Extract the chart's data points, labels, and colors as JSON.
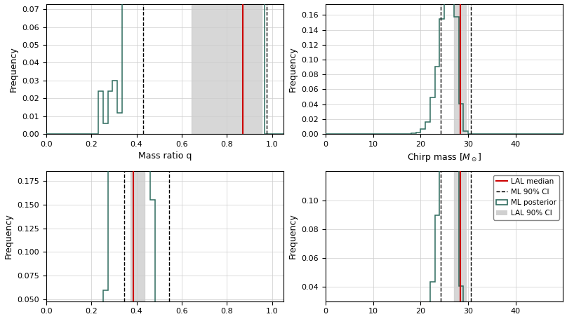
{
  "plot_color": "#2d6b5e",
  "red_color": "#cc0000",
  "lal_shade_color": "#d0d0d0",
  "q_xlim": [
    0.0,
    1.05
  ],
  "q_ylim": [
    0.0,
    0.073
  ],
  "q_yticks": [
    0.0,
    0.01,
    0.02,
    0.03,
    0.04,
    0.05,
    0.06,
    0.07
  ],
  "q_xticks": [
    0.0,
    0.2,
    0.4,
    0.6,
    0.8,
    1.0
  ],
  "q_xlabel": "Mass ratio q",
  "q_ylabel": "Frequency",
  "q_ml_ci_low": 0.43,
  "q_ml_ci_high": 0.975,
  "q_lal_ci_low": 0.645,
  "q_lal_ci_high": 0.955,
  "q_lal_median": 0.87,
  "mchirp_xlim": [
    0,
    50
  ],
  "mchirp_ylim": [
    0.0,
    0.175
  ],
  "mchirp_yticks": [
    0.0,
    0.02,
    0.04,
    0.06,
    0.08,
    0.1,
    0.12,
    0.14,
    0.16
  ],
  "mchirp_xticks": [
    0,
    10,
    20,
    30,
    40
  ],
  "mchirp_xlabel": "Chirp mass [$M_\\odot$]",
  "mchirp_ylabel": "Frequency",
  "mchirp_ml_ci_low": 24.2,
  "mchirp_ml_ci_high": 30.6,
  "mchirp_lal_ci_low": 27.0,
  "mchirp_lal_ci_high": 29.6,
  "mchirp_lal_median": 28.4,
  "bl_xlim": [
    0.0,
    1.05
  ],
  "bl_ylim": [
    0.048,
    0.185
  ],
  "bl_yticks": [
    0.05,
    0.075,
    0.1,
    0.125,
    0.15,
    0.175
  ],
  "bl_xlabel": "",
  "bl_ylabel": "Frequency",
  "bl_ml_ci_low": 0.345,
  "bl_ml_ci_high": 0.545,
  "bl_lal_ci_low": 0.375,
  "bl_lal_ci_high": 0.435,
  "bl_lal_median": 0.385,
  "br_xlim": [
    0,
    50
  ],
  "br_ylim": [
    0.03,
    0.12
  ],
  "br_yticks": [
    0.04,
    0.06,
    0.08,
    0.1
  ],
  "br_xlabel": "",
  "br_ylabel": "Frequency",
  "br_ml_ci_low": 24.2,
  "br_ml_ci_high": 30.6,
  "br_lal_ci_low": 27.0,
  "br_lal_ci_high": 29.6,
  "br_lal_median": 28.4,
  "legend_labels": [
    "LAL median",
    "ML 90% CI",
    "ML posterior",
    "LAL 90% CI"
  ]
}
